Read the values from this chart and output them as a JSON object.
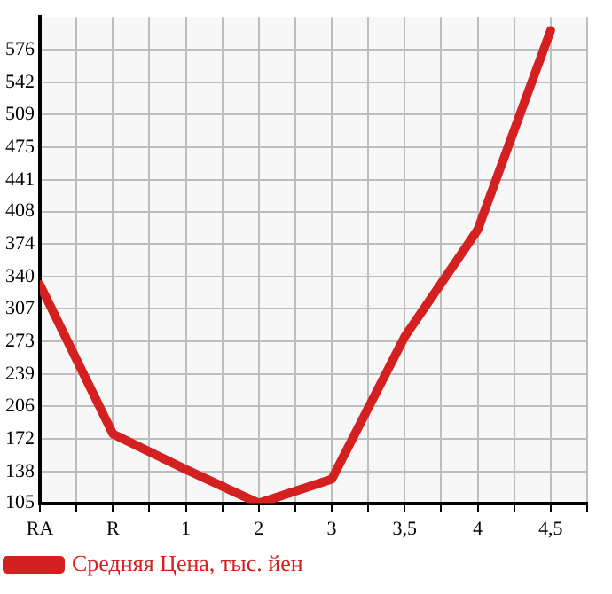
{
  "chart_data": {
    "type": "line",
    "categories": [
      "RA",
      "R",
      "1",
      "2",
      "3",
      "3,5",
      "4",
      "4,5"
    ],
    "series": [
      {
        "name": "Средняя Цена, тыс. йен",
        "color": "#d42020",
        "values": [
          332,
          177,
          140,
          105,
          130,
          278,
          389,
          596
        ]
      }
    ],
    "ylim": [
      105,
      610
    ],
    "yticks": [
      105,
      138,
      172,
      206,
      239,
      273,
      307,
      340,
      374,
      408,
      441,
      475,
      509,
      542,
      576
    ],
    "grid": true,
    "legend": "bottom left",
    "marker": "none",
    "line_style": "solid"
  }
}
